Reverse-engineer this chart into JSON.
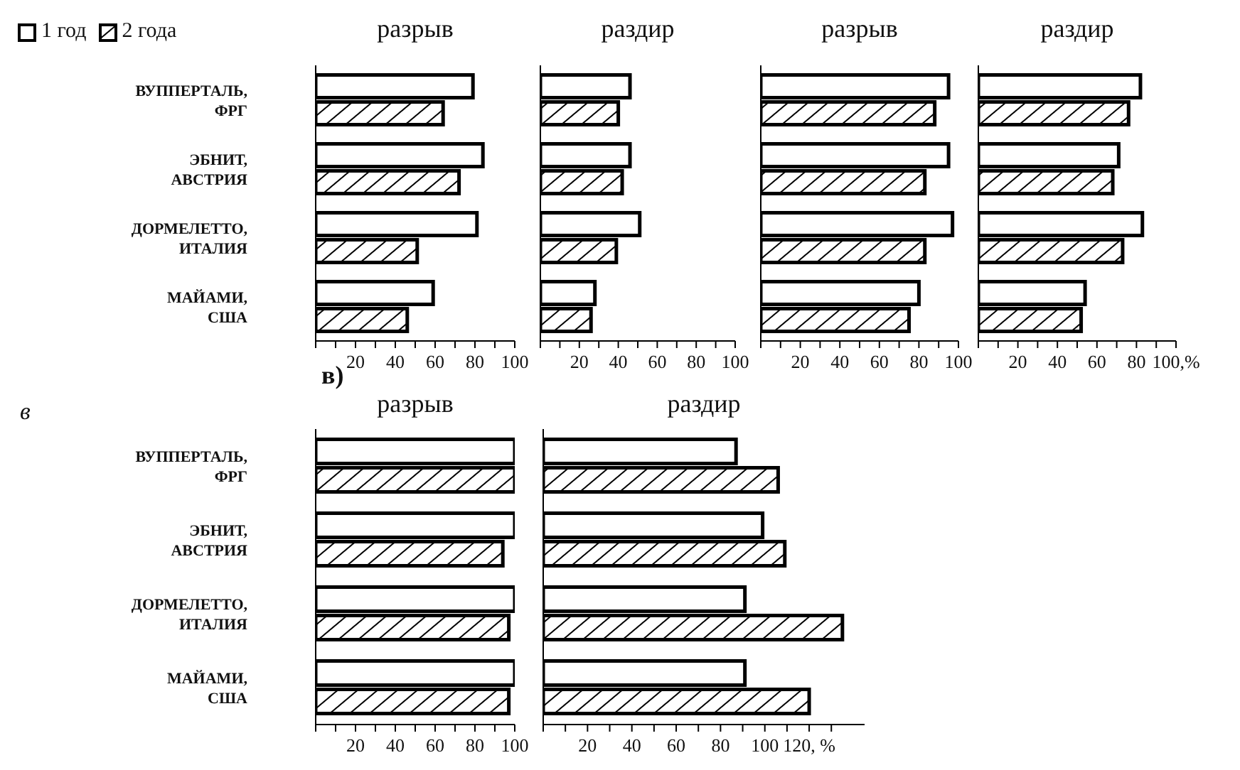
{
  "chart_data": [
    {
      "type": "bar",
      "orientation": "horizontal",
      "title": "разрыв",
      "categories": [
        "ВУППЕРТАЛЬ, ФРГ",
        "ЭБНИТ, АВСТРИЯ",
        "ДОРМЕЛЕТТО, ИТАЛИЯ",
        "МАЙАМИ, США"
      ],
      "series": [
        {
          "name": "1 год",
          "color": "#ffffff",
          "values": [
            79,
            84,
            81,
            59
          ]
        },
        {
          "name": "2 года",
          "color": "#000000",
          "values": [
            64,
            72,
            51,
            46
          ]
        }
      ],
      "xlim": [
        0,
        100
      ],
      "xticks": [
        {
          "value": 0,
          "label": null
        },
        {
          "value": 10,
          "label": null
        },
        20,
        {
          "value": 30,
          "label": null
        },
        40,
        {
          "value": 50,
          "label": null
        },
        60,
        {
          "value": 70,
          "label": null
        },
        80,
        {
          "value": 90,
          "label": null
        },
        100
      ],
      "legend": "top left"
    },
    {
      "type": "bar",
      "orientation": "horizontal",
      "title": "раздир",
      "categories": [
        null,
        null,
        null,
        null
      ],
      "series": [
        {
          "color": "#ffffff",
          "values": [
            46,
            46,
            51,
            28
          ]
        },
        {
          "color": "#000000",
          "values": [
            40,
            42,
            39,
            26
          ]
        }
      ],
      "xlim": [
        0,
        100
      ],
      "xticks": [
        {
          "value": 0,
          "label": null
        },
        {
          "value": 10,
          "label": null
        },
        20,
        {
          "value": 30,
          "label": null
        },
        40,
        {
          "value": 50,
          "label": null
        },
        60,
        {
          "value": 70,
          "label": null
        },
        80,
        {
          "value": 90,
          "label": null
        },
        100
      ],
      "tick_labels": "x"
    },
    {
      "type": "bar",
      "orientation": "horizontal",
      "title": "разрыв",
      "categories": [
        null,
        null,
        null,
        null
      ],
      "series": [
        {
          "color": "#ffffff",
          "values": [
            95,
            95,
            97,
            80
          ]
        },
        {
          "color": "#000000",
          "values": [
            88,
            83,
            83,
            75
          ]
        }
      ],
      "xlim": [
        0,
        100
      ],
      "xticks": [
        {
          "value": 0,
          "label": null
        },
        {
          "value": 10,
          "label": null
        },
        20,
        {
          "value": 30,
          "label": null
        },
        40,
        {
          "value": 50,
          "label": null
        },
        60,
        {
          "value": 70,
          "label": null
        },
        80,
        {
          "value": 90,
          "label": null
        },
        100
      ],
      "tick_labels": "x"
    },
    {
      "type": "bar",
      "orientation": "horizontal",
      "title": "раздир",
      "categories": [
        null,
        null,
        null,
        null
      ],
      "series": [
        {
          "color": "#ffffff",
          "values": [
            82,
            71,
            83,
            54
          ]
        },
        {
          "color": "#000000",
          "values": [
            76,
            68,
            73,
            52
          ]
        }
      ],
      "xlim": [
        0,
        100
      ],
      "xticks": [
        {
          "value": 0,
          "label": null
        },
        {
          "value": 10,
          "label": null
        },
        20,
        {
          "value": 30,
          "label": null
        },
        40,
        {
          "value": 50,
          "label": null
        },
        60,
        {
          "value": 70,
          "label": null
        },
        80,
        {
          "value": 90,
          "label": null
        },
        {
          "value": 100,
          "label": "100,%"
        }
      ],
      "tick_labels": "x"
    },
    {
      "type": "bar",
      "orientation": "horizontal",
      "title": "разрыв",
      "annotations": [
        "в",
        "в)"
      ],
      "categories": [
        "ВУППЕРТАЛЬ, ФРГ",
        "ЭБНИТ, АВСТРИЯ",
        "ДОРМЕЛЕТТО, ИТАЛИЯ",
        "МАЙАМИ, США"
      ],
      "series": [
        {
          "color": "#ffffff",
          "values": [
            100,
            100,
            100,
            100
          ]
        },
        {
          "color": "#000000",
          "values": [
            100,
            94,
            97,
            97
          ]
        }
      ],
      "xlim": [
        0,
        100
      ],
      "xticks": [
        {
          "value": 0,
          "label": null
        },
        {
          "value": 10,
          "label": null
        },
        20,
        {
          "value": 30,
          "label": null
        },
        40,
        {
          "value": 50,
          "label": null
        },
        60,
        {
          "value": 70,
          "label": null
        },
        80,
        {
          "value": 90,
          "label": null
        },
        100
      ]
    },
    {
      "type": "bar",
      "orientation": "horizontal",
      "title": "раздир",
      "categories": [
        null,
        null,
        null,
        null
      ],
      "series": [
        {
          "color": "#ffffff",
          "values": [
            87,
            99,
            91,
            91
          ]
        },
        {
          "color": "#000000",
          "values": [
            106,
            109,
            135,
            120
          ]
        }
      ],
      "xlim": [
        0,
        145
      ],
      "xticks": [
        {
          "value": 0,
          "label": null
        },
        {
          "value": 10,
          "label": null
        },
        20,
        {
          "value": 30,
          "label": null
        },
        40,
        {
          "value": 50,
          "label": null
        },
        60,
        {
          "value": 70,
          "label": null
        },
        80,
        {
          "value": 90,
          "label": null
        },
        100,
        {
          "value": 110,
          "label": null
        },
        {
          "value": 120,
          "label": "120, %"
        },
        {
          "value": 130,
          "label": null
        }
      ],
      "tick_labels": "x"
    }
  ]
}
